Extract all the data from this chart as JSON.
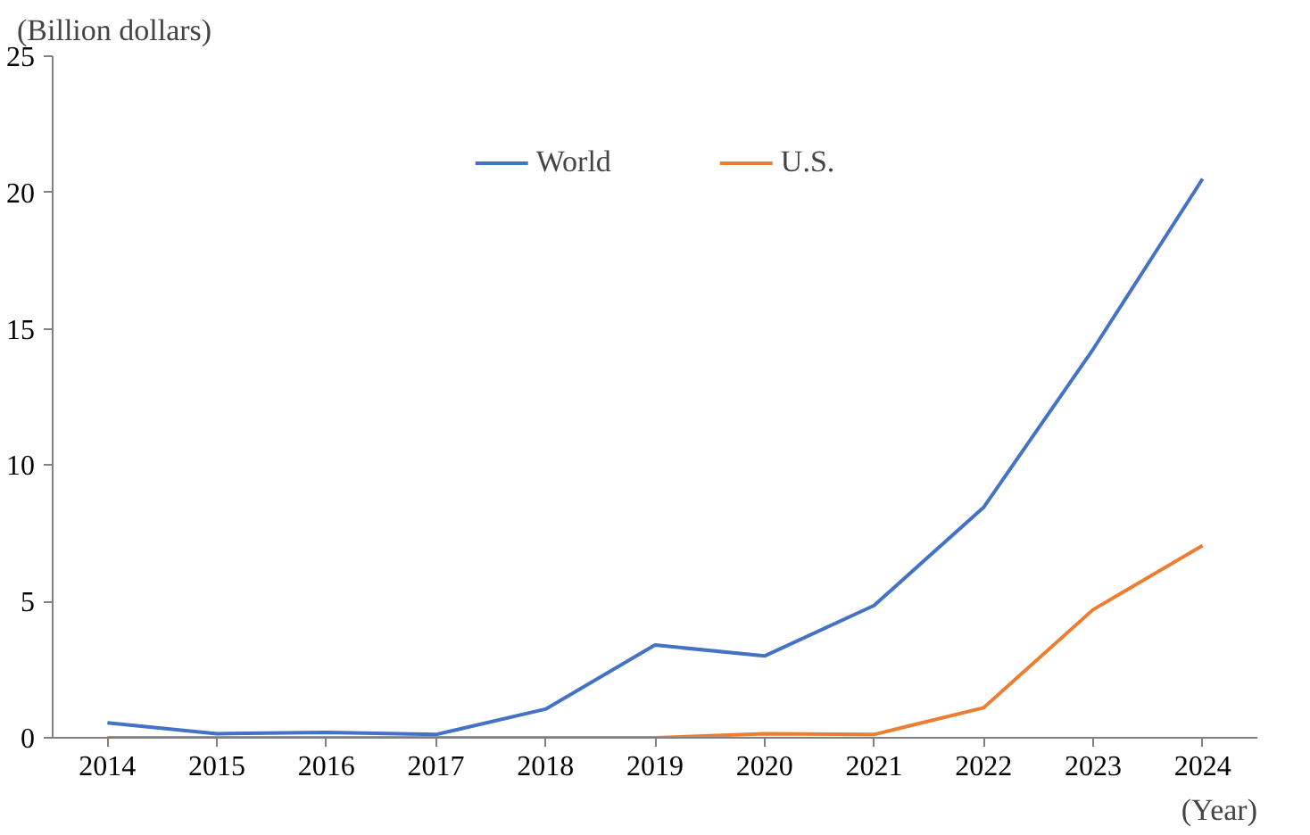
{
  "chart_data": {
    "type": "line",
    "xlabel": "(Year)",
    "ylabel": "(Billion dollars)",
    "categories": [
      "2014",
      "2015",
      "2016",
      "2017",
      "2018",
      "2019",
      "2020",
      "2021",
      "2022",
      "2023",
      "2024"
    ],
    "series": [
      {
        "name": "World",
        "color": "#4472c4",
        "values": [
          0.55,
          0.15,
          0.2,
          0.12,
          1.05,
          3.4,
          3.0,
          4.85,
          8.45,
          14.25,
          20.5
        ]
      },
      {
        "name": "U.S.",
        "color": "#ed7d31",
        "values": [
          0,
          0,
          0,
          0,
          0,
          0,
          0.15,
          0.12,
          1.1,
          4.7,
          7.05
        ]
      }
    ],
    "ylim": [
      0,
      25
    ],
    "yticks": [
      0,
      5,
      10,
      15,
      20,
      25
    ],
    "grid": false,
    "legend": "top",
    "marker": "none",
    "line_style": "solid"
  }
}
